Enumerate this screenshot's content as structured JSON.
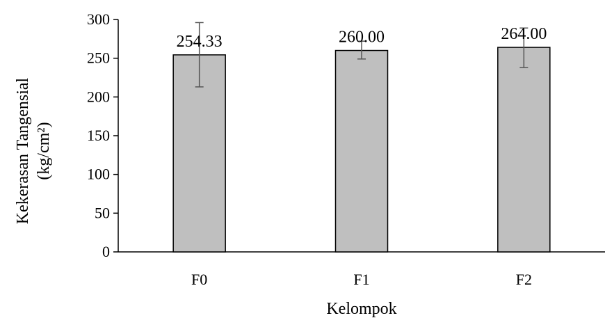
{
  "chart_data": {
    "type": "bar",
    "title": "",
    "xlabel": "Kelompok",
    "ylabel_line1": "Kekerasan Tangensial",
    "ylabel_line2": "(kg/cm²)",
    "categories": [
      "F0",
      "F1",
      "F2"
    ],
    "values": [
      254.33,
      260.0,
      264.0
    ],
    "value_labels": [
      "254.33",
      "260.00",
      "264.00"
    ],
    "error_low": [
      213,
      249,
      238
    ],
    "error_high": [
      296,
      272,
      289
    ],
    "ylim": [
      0,
      300
    ],
    "yticks": [
      0,
      50,
      100,
      150,
      200,
      250,
      300
    ],
    "ytick_labels": [
      "0",
      "50",
      "100",
      "150",
      "200",
      "250",
      "300"
    ],
    "grid": false,
    "bar_color": "#bfbfbf",
    "bar_edge_color": "#000000",
    "error_bar_color": "#555555"
  }
}
